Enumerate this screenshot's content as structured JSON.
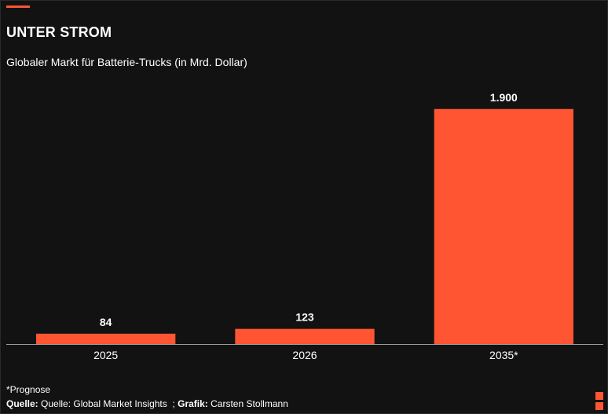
{
  "header": {
    "title": "UNTER STROM",
    "subtitle": "Globaler Markt für Batterie-Trucks (in Mrd. Dollar)"
  },
  "colors": {
    "accent": "#ff5533",
    "bar": "#ff5533",
    "text": "#ffffff",
    "background": "#121212",
    "axis": "#9a9a9a"
  },
  "chart_data": {
    "type": "bar",
    "categories": [
      "2025",
      "2026",
      "2035*"
    ],
    "values": [
      84,
      123,
      1900
    ],
    "data_labels": [
      "84",
      "123",
      "1.900"
    ],
    "title": "Globaler Markt für Batterie-Trucks (in Mrd. Dollar)",
    "xlabel": "",
    "ylabel": "",
    "ylim": [
      0,
      2000
    ],
    "grid": false,
    "legend": "none"
  },
  "footer": {
    "footnote": "*Prognose",
    "source_label": "Quelle:",
    "source_text": " Quelle: Global Market Insights  ; ",
    "credit_label": "Grafik:",
    "credit_text": " Carsten Stollmann"
  }
}
